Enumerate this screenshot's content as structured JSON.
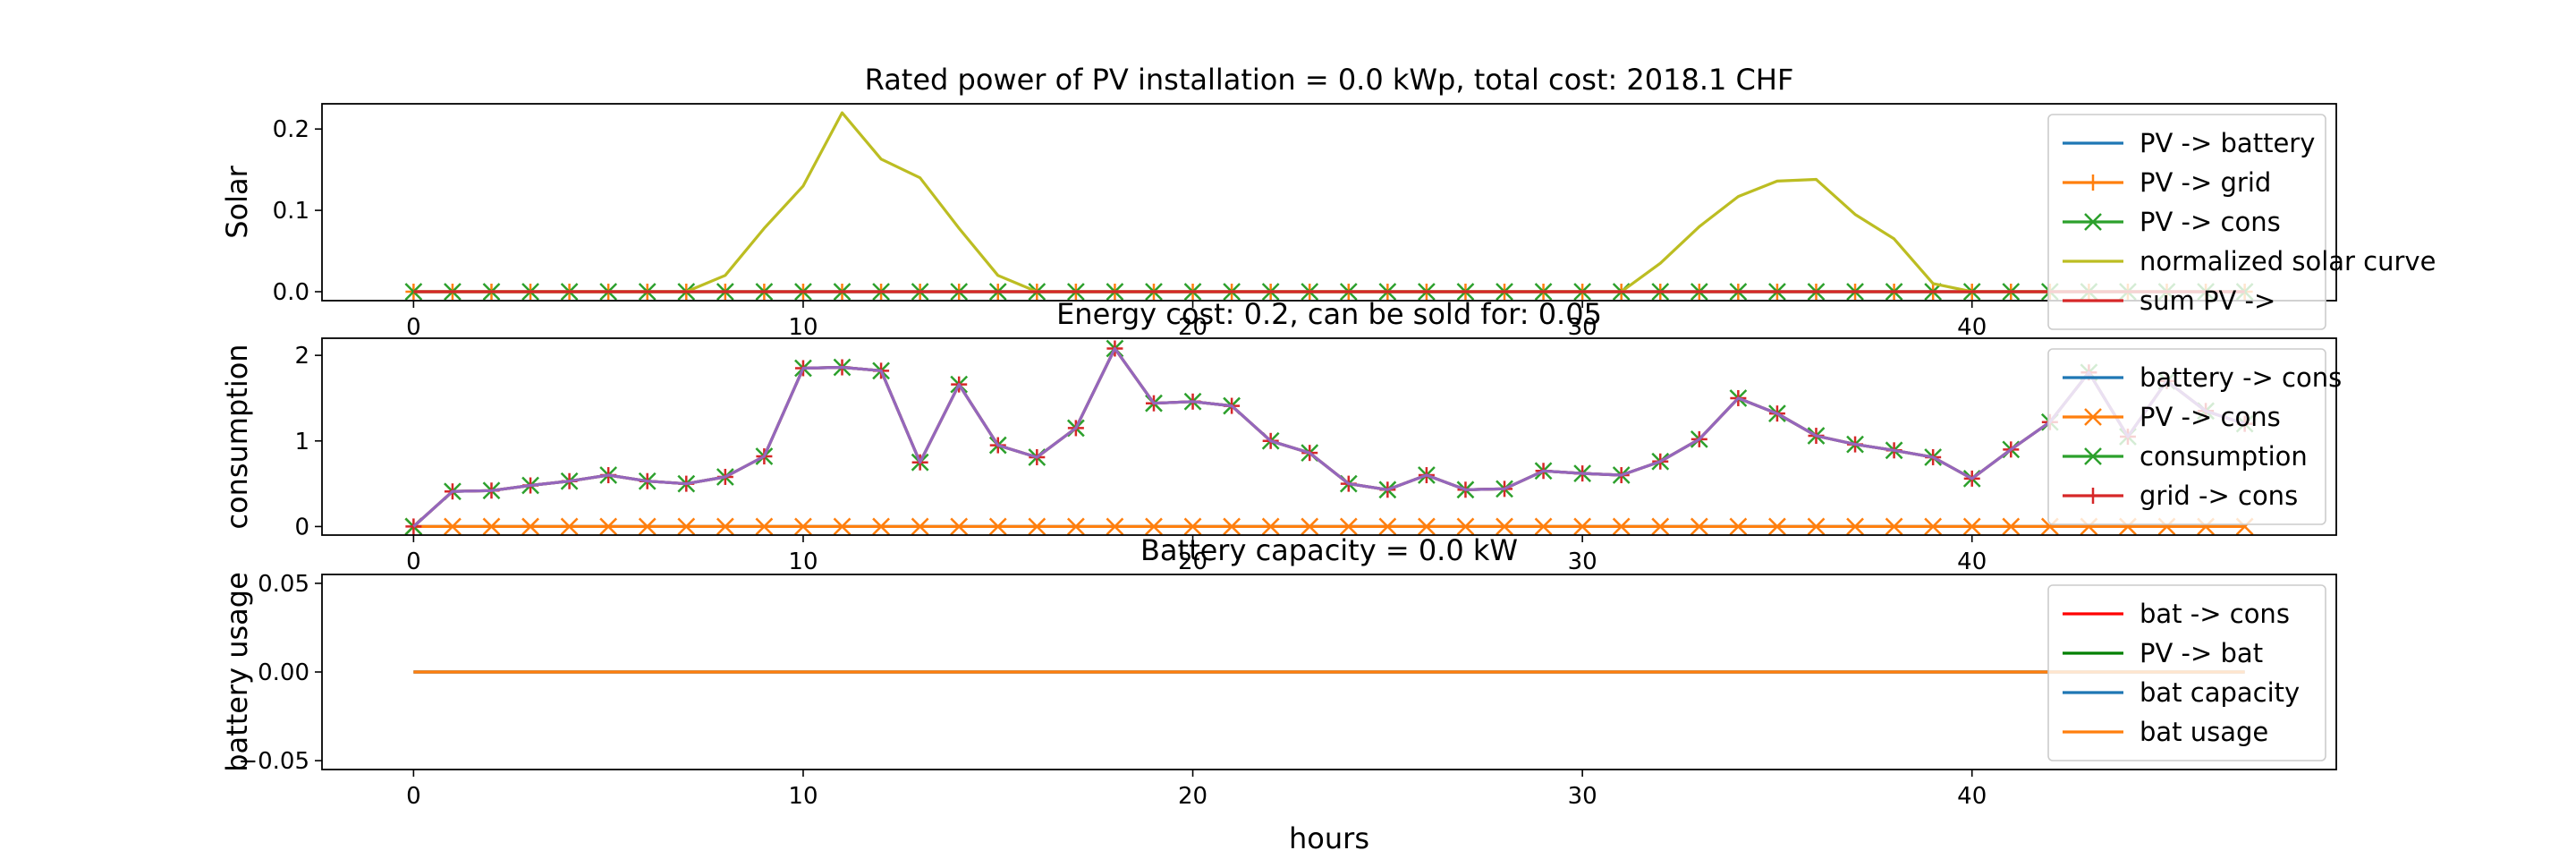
{
  "chart_data": [
    {
      "type": "line",
      "title": "Rated power of PV installation = 0.0 kWp, total cost: 2018.1 CHF",
      "xlabel": "",
      "ylabel": "Solar",
      "xlim": [
        -2.35,
        49.35
      ],
      "ylim": [
        -0.011,
        0.231
      ],
      "xticks": [
        0,
        10,
        20,
        30,
        40
      ],
      "yticks": [
        0.0,
        0.1,
        0.2
      ],
      "ytick_labels": [
        "0.0",
        "0.1",
        "0.2"
      ],
      "legend": "top-right",
      "series": [
        {
          "name": "PV -> battery",
          "color": "#1f77b4",
          "marker": "",
          "values": [
            0,
            0,
            0,
            0,
            0,
            0,
            0,
            0,
            0,
            0,
            0,
            0,
            0,
            0,
            0,
            0,
            0,
            0,
            0,
            0,
            0,
            0,
            0,
            0,
            0,
            0,
            0,
            0,
            0,
            0,
            0,
            0,
            0,
            0,
            0,
            0,
            0,
            0,
            0,
            0,
            0,
            0,
            0,
            0,
            0,
            0,
            0,
            0
          ]
        },
        {
          "name": "PV -> grid",
          "color": "#ff7f0e",
          "marker": "plus",
          "values": [
            0,
            0,
            0,
            0,
            0,
            0,
            0,
            0,
            0,
            0,
            0,
            0,
            0,
            0,
            0,
            0,
            0,
            0,
            0,
            0,
            0,
            0,
            0,
            0,
            0,
            0,
            0,
            0,
            0,
            0,
            0,
            0,
            0,
            0,
            0,
            0,
            0,
            0,
            0,
            0,
            0,
            0,
            0,
            0,
            0,
            0,
            0,
            0
          ]
        },
        {
          "name": "PV -> cons",
          "color": "#2ca02c",
          "marker": "x",
          "values": [
            0,
            0,
            0,
            0,
            0,
            0,
            0,
            0,
            0,
            0,
            0,
            0,
            0,
            0,
            0,
            0,
            0,
            0,
            0,
            0,
            0,
            0,
            0,
            0,
            0,
            0,
            0,
            0,
            0,
            0,
            0,
            0,
            0,
            0,
            0,
            0,
            0,
            0,
            0,
            0,
            0,
            0,
            0,
            0,
            0,
            0,
            0,
            0
          ]
        },
        {
          "name": "normalized solar curve",
          "color": "#bcbd22",
          "marker": "",
          "values": [
            0,
            0,
            0,
            0,
            0,
            0,
            0,
            0,
            0.02,
            0.078,
            0.13,
            0.22,
            0.163,
            0.14,
            0.078,
            0.02,
            0,
            0,
            0,
            0,
            0,
            0,
            0,
            0,
            0,
            0,
            0,
            0,
            0,
            0,
            0,
            0,
            0.035,
            0.08,
            0.117,
            0.136,
            0.138,
            0.095,
            0.065,
            0.01,
            0,
            0,
            0,
            0,
            0,
            0,
            0,
            0
          ]
        },
        {
          "name": "sum PV ->",
          "color": "#d62728",
          "marker": "",
          "values": [
            0,
            0,
            0,
            0,
            0,
            0,
            0,
            0,
            0,
            0,
            0,
            0,
            0,
            0,
            0,
            0,
            0,
            0,
            0,
            0,
            0,
            0,
            0,
            0,
            0,
            0,
            0,
            0,
            0,
            0,
            0,
            0,
            0,
            0,
            0,
            0,
            0,
            0,
            0,
            0,
            0,
            0,
            0,
            0,
            0,
            0,
            0,
            0
          ]
        }
      ]
    },
    {
      "type": "line",
      "title": "Energy cost: 0.2, can be sold for: 0.05",
      "xlabel": "",
      "ylabel": "consumption",
      "xlim": [
        -2.35,
        49.35
      ],
      "ylim": [
        -0.1,
        2.2
      ],
      "xticks": [
        0,
        10,
        20,
        30,
        40
      ],
      "yticks": [
        0,
        1,
        2
      ],
      "ytick_labels": [
        "0",
        "1",
        "2"
      ],
      "legend": "top-right",
      "series": [
        {
          "name": "battery -> cons",
          "color": "#1f77b4",
          "marker": "",
          "values": [
            0,
            0,
            0,
            0,
            0,
            0,
            0,
            0,
            0,
            0,
            0,
            0,
            0,
            0,
            0,
            0,
            0,
            0,
            0,
            0,
            0,
            0,
            0,
            0,
            0,
            0,
            0,
            0,
            0,
            0,
            0,
            0,
            0,
            0,
            0,
            0,
            0,
            0,
            0,
            0,
            0,
            0,
            0,
            0,
            0,
            0,
            0,
            0
          ]
        },
        {
          "name": "PV -> cons",
          "color": "#ff7f0e",
          "marker": "x",
          "values": [
            0,
            0,
            0,
            0,
            0,
            0,
            0,
            0,
            0,
            0,
            0,
            0,
            0,
            0,
            0,
            0,
            0,
            0,
            0,
            0,
            0,
            0,
            0,
            0,
            0,
            0,
            0,
            0,
            0,
            0,
            0,
            0,
            0,
            0,
            0,
            0,
            0,
            0,
            0,
            0,
            0,
            0,
            0,
            0,
            0,
            0,
            0,
            0
          ]
        },
        {
          "name": "consumption",
          "color": "#2ca02c",
          "marker": "x",
          "values": [
            0,
            0.41,
            0.42,
            0.48,
            0.53,
            0.6,
            0.53,
            0.5,
            0.58,
            0.82,
            1.85,
            1.86,
            1.82,
            0.75,
            1.66,
            0.95,
            0.81,
            1.15,
            2.08,
            1.44,
            1.46,
            1.41,
            1.0,
            0.86,
            0.5,
            0.43,
            0.6,
            0.43,
            0.44,
            0.65,
            0.62,
            0.6,
            0.76,
            1.02,
            1.5,
            1.32,
            1.06,
            0.96,
            0.89,
            0.81,
            0.56,
            0.9,
            1.22,
            1.8,
            1.05,
            1.7,
            1.35,
            1.2
          ]
        },
        {
          "name": "grid -> cons",
          "color": "#d62728",
          "marker": "plus",
          "values": [
            0,
            0.41,
            0.42,
            0.48,
            0.53,
            0.6,
            0.53,
            0.5,
            0.58,
            0.82,
            1.85,
            1.86,
            1.82,
            0.75,
            1.66,
            0.95,
            0.81,
            1.15,
            2.08,
            1.44,
            1.46,
            1.41,
            1.0,
            0.86,
            0.5,
            0.43,
            0.6,
            0.43,
            0.44,
            0.65,
            0.62,
            0.6,
            0.76,
            1.02,
            1.5,
            1.32,
            1.06,
            0.96,
            0.89,
            0.81,
            0.56,
            0.9,
            1.22,
            1.8,
            1.05,
            1.7,
            1.35,
            1.2
          ]
        },
        {
          "name": "",
          "color": "#9467bd",
          "marker": "",
          "values": [
            0,
            0.41,
            0.42,
            0.48,
            0.53,
            0.6,
            0.53,
            0.5,
            0.58,
            0.82,
            1.85,
            1.86,
            1.82,
            0.75,
            1.66,
            0.95,
            0.81,
            1.15,
            2.08,
            1.44,
            1.46,
            1.41,
            1.0,
            0.86,
            0.5,
            0.43,
            0.6,
            0.43,
            0.44,
            0.65,
            0.62,
            0.6,
            0.76,
            1.02,
            1.5,
            1.32,
            1.06,
            0.96,
            0.89,
            0.81,
            0.56,
            0.9,
            1.22,
            1.8,
            1.05,
            1.7,
            1.35,
            1.2
          ]
        }
      ]
    },
    {
      "type": "line",
      "title": "Battery capacity = 0.0 kW",
      "xlabel": "hours",
      "ylabel": "battery usage",
      "xlim": [
        -2.35,
        49.35
      ],
      "ylim": [
        -0.055,
        0.055
      ],
      "xticks": [
        0,
        10,
        20,
        30,
        40
      ],
      "yticks": [
        -0.05,
        0.0,
        0.05
      ],
      "ytick_labels": [
        "−0.05",
        "0.00",
        "0.05"
      ],
      "legend": "top-right",
      "series": [
        {
          "name": "bat -> cons",
          "color": "#ff0000",
          "marker": "",
          "values": [
            0,
            0,
            0,
            0,
            0,
            0,
            0,
            0,
            0,
            0,
            0,
            0,
            0,
            0,
            0,
            0,
            0,
            0,
            0,
            0,
            0,
            0,
            0,
            0,
            0,
            0,
            0,
            0,
            0,
            0,
            0,
            0,
            0,
            0,
            0,
            0,
            0,
            0,
            0,
            0,
            0,
            0,
            0,
            0,
            0,
            0,
            0,
            0
          ]
        },
        {
          "name": "PV -> bat",
          "color": "#008000",
          "marker": "",
          "values": [
            0,
            0,
            0,
            0,
            0,
            0,
            0,
            0,
            0,
            0,
            0,
            0,
            0,
            0,
            0,
            0,
            0,
            0,
            0,
            0,
            0,
            0,
            0,
            0,
            0,
            0,
            0,
            0,
            0,
            0,
            0,
            0,
            0,
            0,
            0,
            0,
            0,
            0,
            0,
            0,
            0,
            0,
            0,
            0,
            0,
            0,
            0,
            0
          ]
        },
        {
          "name": "bat capacity",
          "color": "#1f77b4",
          "marker": "",
          "values": [
            0,
            0,
            0,
            0,
            0,
            0,
            0,
            0,
            0,
            0,
            0,
            0,
            0,
            0,
            0,
            0,
            0,
            0,
            0,
            0,
            0,
            0,
            0,
            0,
            0,
            0,
            0,
            0,
            0,
            0,
            0,
            0,
            0,
            0,
            0,
            0,
            0,
            0,
            0,
            0,
            0,
            0,
            0,
            0,
            0,
            0,
            0,
            0
          ]
        },
        {
          "name": "bat usage",
          "color": "#ff7f0e",
          "marker": "",
          "values": [
            0,
            0,
            0,
            0,
            0,
            0,
            0,
            0,
            0,
            0,
            0,
            0,
            0,
            0,
            0,
            0,
            0,
            0,
            0,
            0,
            0,
            0,
            0,
            0,
            0,
            0,
            0,
            0,
            0,
            0,
            0,
            0,
            0,
            0,
            0,
            0,
            0,
            0,
            0,
            0,
            0,
            0,
            0,
            0,
            0,
            0,
            0,
            0
          ]
        }
      ]
    }
  ]
}
